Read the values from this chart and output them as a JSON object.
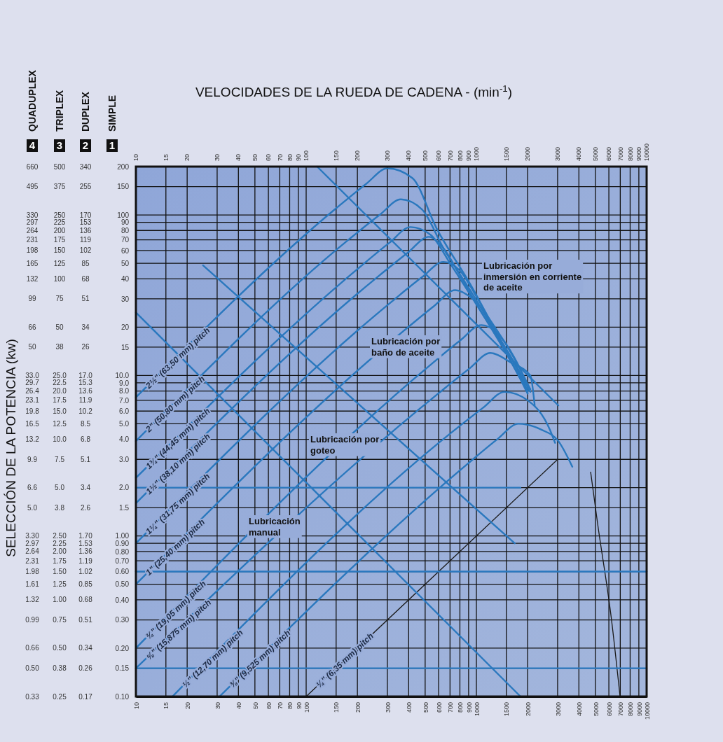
{
  "chart_data": {
    "type": "line",
    "title": "VELOCIDADES DE LA RUEDA DE CADENA  - (min$^{-1}$)",
    "ylabel": "SIMPLE",
    "annotations": [
      "SELECCIÓN DE LA POTENCIA (kw)",
      "4",
      "3",
      "2",
      "1",
      "DUPLEX",
      "TRIPLEX",
      "QUADUPLEX",
      "Lubricación\nmanual",
      "Lubricación por\ngoteo",
      "Lubricación por\nbaño de aceite",
      "Lubricación por\ninmersión en corriente\nde aceite",
      "0.17",
      "0.26",
      "0.34",
      "0.51",
      "0.68",
      "0.85",
      "1.02",
      "1.19",
      "1.36",
      "1.53",
      "1.70",
      "2.6",
      "3.4",
      "5.1",
      "6.8",
      "8.5",
      "10.2",
      "11.9",
      "13.6",
      "15.3",
      "17.0",
      "26",
      "34",
      "51",
      "68",
      "85",
      "102",
      "119",
      "136",
      "153",
      "170",
      "255",
      "340",
      "0.25",
      "0.38",
      "0.50",
      "0.75",
      "1.00",
      "1.25",
      "1.50",
      "1.75",
      "2.00",
      "2.25",
      "2.50",
      "3.8",
      "5.0",
      "7.5",
      "10.0",
      "12.5",
      "15.0",
      "17.5",
      "20.0",
      "22.5",
      "25.0",
      "38",
      "50",
      "75",
      "100",
      "125",
      "150",
      "175",
      "200",
      "225",
      "250",
      "375",
      "500",
      "0.33",
      "0.50",
      "0.66",
      "0.99",
      "1.32",
      "1.61",
      "1.98",
      "2.31",
      "2.64",
      "2.97",
      "3.30",
      "5.0",
      "6.6",
      "9.9",
      "13.2",
      "16.5",
      "19.8",
      "23.1",
      "26.4",
      "29.7",
      "33.0",
      "50",
      "66",
      "99",
      "132",
      "165",
      "198",
      "231",
      "264",
      "297",
      "330",
      "495",
      "660",
      "10",
      "15",
      "20",
      "30",
      "40",
      "50",
      "60",
      "70",
      "80",
      "90",
      "100",
      "150",
      "200",
      "300",
      "400",
      "500",
      "600",
      "700",
      "800",
      "900",
      "1000",
      "1500",
      "2000",
      "3000",
      "4000",
      "5000",
      "6000",
      "7000",
      "8000",
      "9000",
      "10000"
    ],
    "log": "xy",
    "grid": true,
    "line_style": "solid",
    "xlim": [
      10,
      10000
    ],
    "xticks": [
      10,
      15,
      20,
      30,
      40,
      50,
      60,
      70,
      80,
      90,
      100,
      150,
      200,
      300,
      400,
      500,
      600,
      700,
      800,
      900,
      1000,
      1500,
      2000,
      3000,
      4000,
      5000,
      6000,
      7000,
      8000,
      9000,
      10000
    ],
    "ylim": [
      0.1,
      200
    ],
    "yticks": [
      {
        "value": 0.1,
        "label": "0.10"
      },
      0.15,
      {
        "value": 0.2,
        "label": "0.20"
      },
      {
        "value": 0.3,
        "label": "0.30"
      },
      {
        "value": 0.4,
        "label": "0.40"
      },
      {
        "value": 0.5,
        "label": "0.50"
      },
      {
        "value": 0.6,
        "label": "0.60"
      },
      {
        "value": 0.7,
        "label": "0.70"
      },
      {
        "value": 0.8,
        "label": "0.80"
      },
      {
        "value": 0.9,
        "label": "0.90"
      },
      {
        "value": 1,
        "label": "1.00"
      },
      1.5,
      {
        "value": 2,
        "label": "2.0"
      },
      {
        "value": 3,
        "label": "3.0"
      },
      {
        "value": 4,
        "label": "4.0"
      },
      {
        "value": 5,
        "label": "5.0"
      },
      {
        "value": 6,
        "label": "6.0"
      },
      {
        "value": 7,
        "label": "7.0"
      },
      {
        "value": 8,
        "label": "8.0"
      },
      {
        "value": 9,
        "label": "9.0"
      },
      {
        "value": 10,
        "label": "10.0"
      },
      15,
      20,
      30,
      40,
      50,
      60,
      70,
      80,
      90,
      100,
      150,
      200
    ],
    "series": [
      {
        "name": "2½\" (63,50 mm) pitch",
        "color": "#2a78be",
        "x": [
          10,
          150,
          225,
          300,
          420,
          582,
          935,
          1330,
          1770,
          2000
        ],
        "values": [
          7.3,
          110,
          156,
          195,
          170,
          83,
          36,
          18,
          10.5,
          8
        ]
      },
      {
        "name": "2\" (50,80 mm) pitch",
        "color": "#2a78be",
        "x": [
          10,
          180,
          270,
          360,
          480,
          640,
          935,
          1330,
          1770,
          2000
        ],
        "values": [
          3.9,
          71,
          100,
          125,
          108,
          62,
          33,
          17.5,
          10,
          8
        ]
      },
      {
        "name": "1¾\" (44,45 mm) pitch",
        "color": "#2a78be",
        "x": [
          10,
          205,
          308,
          410,
          540,
          700,
          935,
          1330,
          1770,
          2000
        ],
        "values": [
          2.3,
          47,
          67,
          84,
          75,
          50,
          31,
          17,
          10,
          7.8
        ]
      },
      {
        "name": "1½\" (38,10 mm) pitch",
        "color": "#2a78be",
        "x": [
          10,
          262,
          394,
          525,
          640,
          800,
          1000,
          1330,
          1770,
          2000
        ],
        "values": [
          1.6,
          41,
          58,
          73,
          62,
          42,
          28,
          17,
          10,
          7.7
        ]
      },
      {
        "name": "1¼\" (31,75 mm) pitch",
        "color": "#2a78be",
        "x": [
          10,
          320,
          480,
          640,
          800,
          1000,
          1330,
          1770,
          2050
        ],
        "values": [
          0.9,
          29,
          41,
          51,
          45,
          31,
          18,
          10.8,
          8
        ]
      },
      {
        "name": "1\" (25,40 mm) pitch",
        "color": "#2a78be",
        "x": [
          10,
          375,
          562,
          750,
          950,
          1330,
          1770,
          2075
        ],
        "values": [
          0.5,
          19,
          27,
          34,
          30,
          18.9,
          11.4,
          8.2
        ]
      },
      {
        "name": "¾\" (19,05 mm) pitch",
        "color": "#2a78be",
        "x": [
          10,
          535,
          802,
          1070,
          1350,
          1720,
          2075
        ],
        "values": [
          0.2,
          11.6,
          16.5,
          20.6,
          18,
          12.2,
          7.9
        ]
      },
      {
        "name": "⅝\" (15,875 mm) pitch",
        "color": "#2a78be",
        "x": [
          10,
          604,
          906,
          1208,
          1600,
          2075,
          2200
        ],
        "values": [
          0.15,
          7.8,
          11,
          13.8,
          12,
          10,
          6.5
        ]
      },
      {
        "name": "½\" (12,70 mm) pitch",
        "color": "#2a78be",
        "x": [
          16.4,
          731,
          1096,
          1462,
          2000,
          2700,
          2900
        ],
        "values": [
          0.1,
          4.5,
          6.3,
          7.9,
          7,
          4.6,
          3.8
        ]
      },
      {
        "name": "⅜\" (9,525 mm) pitch",
        "color": "#2a78be",
        "x": [
          31,
          883,
          1325,
          1766,
          2400,
          3030,
          3660
        ],
        "values": [
          0.1,
          2.8,
          4,
          5,
          4.6,
          3.9,
          2.7
        ]
      },
      {
        "name": "¼\" (6,35 mm) pitch",
        "color": "#1a1a1a",
        "x": [
          100,
          3000
        ],
        "values": [
          0.1,
          3.0
        ]
      },
      {
        "color": "#1a1a1a",
        "x": [
          4690,
          5150,
          6220,
          6980
        ],
        "values": [
          2.5,
          1.2,
          0.3,
          0.1
        ]
      },
      {
        "color": "#2a78be",
        "x": [
          116,
          3030
        ],
        "values": [
          200,
          6.5
        ]
      },
      {
        "color": "#2a78be",
        "x": [
          24.8,
          1680
        ],
        "values": [
          48.5,
          0.9
        ]
      },
      {
        "color": "#2a78be",
        "x": [
          10,
          1815
        ],
        "values": [
          24.7,
          0.1
        ]
      },
      {
        "color": "#2a78be",
        "x": [
          10,
          1815
        ],
        "values": [
          2,
          2
        ]
      },
      {
        "color": "#2a78be",
        "x": [
          10,
          10000
        ],
        "values": [
          0.6,
          0.6
        ]
      },
      {
        "color": "#2a78be",
        "x": [
          10,
          10000
        ],
        "values": [
          0.15,
          0.15
        ]
      }
    ]
  }
}
